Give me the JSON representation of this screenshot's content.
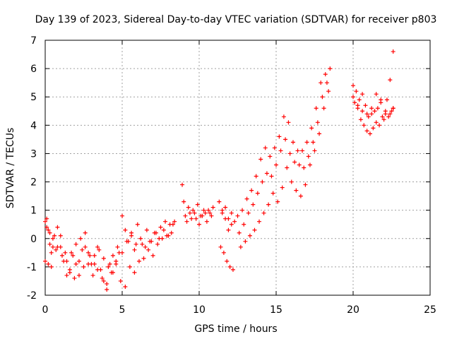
{
  "chart_data": {
    "type": "scatter",
    "title": "Day 139 of 2023, Sidereal Day-to-day VTEC variation (SDTVAR) for receiver p803",
    "xlabel": "GPS time / hours",
    "ylabel": "SDTVAR / TECUs",
    "xlim": [
      0,
      25
    ],
    "ylim": [
      -2,
      7
    ],
    "xticks": [
      "0",
      "5",
      "10",
      "15",
      "20",
      "25"
    ],
    "yticks": [
      "-2",
      "-1",
      "0",
      "1",
      "2",
      "3",
      "4",
      "5",
      "6",
      "7"
    ],
    "grid": true,
    "marker": "+",
    "color": "#ff0000",
    "series": [
      {
        "name": "SDTVAR",
        "x": [
          0.0,
          0.1,
          0.2,
          0.3,
          0.4,
          0.5,
          0.6,
          0.8,
          1.0,
          1.2,
          1.4,
          1.6,
          1.8,
          2.0,
          2.2,
          2.4,
          2.6,
          2.8,
          3.0,
          3.2,
          3.4,
          3.6,
          3.8,
          4.0,
          4.2,
          4.4,
          4.6,
          4.8,
          5.0,
          5.2,
          5.4,
          5.6,
          5.8,
          6.0,
          6.3,
          6.6,
          6.9,
          7.2,
          7.5,
          7.8,
          8.1,
          8.4,
          0.0,
          0.2,
          0.4,
          0.7,
          1.0,
          1.3,
          1.6,
          1.9,
          2.2,
          2.5,
          2.8,
          3.1,
          3.4,
          3.7,
          4.0,
          4.3,
          4.6,
          4.9,
          5.2,
          5.5,
          5.8,
          6.1,
          6.4,
          6.7,
          7.0,
          7.3,
          7.6,
          7.9,
          8.2,
          0.1,
          0.3,
          0.5,
          0.8,
          1.1,
          1.4,
          1.7,
          2.0,
          2.3,
          2.6,
          2.9,
          3.2,
          3.5,
          3.8,
          4.1,
          4.4,
          4.7,
          5.0,
          5.3,
          5.6,
          5.9,
          6.2,
          6.5,
          6.8,
          7.1,
          7.4,
          7.7,
          8.0,
          8.3,
          8.9,
          9.0,
          9.1,
          9.3,
          9.5,
          9.7,
          9.9,
          10.1,
          10.3,
          10.5,
          10.7,
          10.9,
          9.2,
          9.4,
          9.6,
          9.8,
          10.0,
          10.2,
          10.4,
          10.6,
          10.8,
          11.3,
          11.5,
          11.7,
          11.9,
          12.1,
          12.3,
          11.4,
          11.6,
          11.8,
          12.0,
          12.2,
          11.5,
          11.7,
          11.9,
          12.1,
          12.5,
          12.8,
          13.1,
          13.4,
          13.7,
          14.0,
          14.3,
          14.6,
          14.9,
          15.2,
          15.5,
          15.8,
          16.1,
          16.4,
          16.7,
          17.0,
          17.3,
          17.6,
          17.9,
          18.2,
          18.5,
          12.6,
          12.9,
          13.2,
          13.5,
          13.8,
          14.1,
          14.4,
          14.7,
          15.0,
          15.3,
          15.6,
          15.9,
          16.2,
          16.5,
          16.8,
          17.1,
          17.4,
          17.7,
          18.0,
          18.3,
          12.7,
          13.0,
          13.3,
          13.6,
          13.9,
          14.2,
          14.5,
          14.8,
          15.1,
          15.4,
          15.7,
          16.0,
          16.3,
          16.6,
          16.9,
          17.2,
          17.5,
          17.8,
          18.1,
          18.4,
          20.0,
          20.2,
          20.4,
          20.6,
          20.8,
          21.0,
          21.2,
          21.4,
          21.6,
          21.8,
          22.0,
          22.2,
          22.4,
          22.6,
          20.1,
          20.3,
          20.5,
          20.7,
          20.9,
          21.1,
          21.3,
          21.5,
          21.7,
          21.9,
          22.1,
          22.3,
          22.5,
          22.6,
          20.0,
          20.3,
          20.6,
          20.9,
          21.2,
          21.5,
          21.8,
          22.1,
          22.4,
          22.6
        ],
        "y": [
          0.6,
          0.7,
          0.3,
          -0.2,
          -0.5,
          -0.3,
          0.1,
          0.4,
          -0.3,
          -0.8,
          -1.3,
          -1.1,
          -0.6,
          -0.9,
          -0.8,
          -0.4,
          0.2,
          -0.5,
          -0.9,
          -0.6,
          -0.3,
          -1.1,
          -1.5,
          -1.6,
          -0.9,
          -1.2,
          -0.8,
          -0.5,
          0.8,
          0.3,
          -0.1,
          0.1,
          -0.4,
          0.5,
          -0.2,
          0.3,
          -0.1,
          0.2,
          0.4,
          0.6,
          0.5,
          0.6,
          -0.8,
          -0.9,
          -1.0,
          -0.4,
          0.1,
          -0.5,
          -1.2,
          -1.4,
          -1.3,
          -1.0,
          -0.9,
          -1.3,
          -1.1,
          -1.4,
          -1.8,
          -1.2,
          -0.9,
          -1.5,
          -1.7,
          -1.0,
          -1.2,
          -0.8,
          -0.7,
          -0.4,
          -0.6,
          -0.2,
          0.0,
          0.1,
          0.2,
          0.4,
          0.2,
          0.0,
          -0.3,
          -0.6,
          -0.8,
          -0.5,
          -0.2,
          0.0,
          -0.3,
          -0.6,
          -0.9,
          -0.4,
          -0.7,
          -1.0,
          -0.6,
          -0.3,
          -0.5,
          -0.1,
          0.2,
          -0.2,
          0.0,
          -0.3,
          -0.1,
          0.2,
          0.0,
          0.3,
          0.1,
          0.5,
          1.9,
          1.3,
          0.8,
          1.1,
          0.7,
          0.9,
          1.2,
          0.8,
          1.0,
          0.6,
          0.9,
          1.1,
          0.6,
          0.9,
          1.0,
          0.7,
          0.5,
          0.8,
          0.9,
          1.0,
          0.8,
          1.3,
          0.9,
          0.7,
          0.3,
          0.5,
          0.6,
          -0.3,
          -0.5,
          -0.8,
          -1.0,
          -1.1,
          1.0,
          1.1,
          0.7,
          0.9,
          0.8,
          1.0,
          1.4,
          1.7,
          2.2,
          2.8,
          3.2,
          2.9,
          3.2,
          3.6,
          4.3,
          4.1,
          3.4,
          3.1,
          3.1,
          3.4,
          3.9,
          4.6,
          5.5,
          5.8,
          6.0,
          0.2,
          0.5,
          0.9,
          1.2,
          1.6,
          2.0,
          2.3,
          2.2,
          2.6,
          3.1,
          3.5,
          3.0,
          2.7,
          2.6,
          2.5,
          2.9,
          3.4,
          4.1,
          5.0,
          5.5,
          -0.3,
          -0.1,
          0.1,
          0.3,
          0.6,
          0.9,
          1.2,
          1.6,
          1.3,
          1.8,
          2.5,
          2.0,
          1.7,
          1.5,
          1.9,
          2.6,
          3.1,
          3.7,
          4.6,
          5.2,
          5.4,
          5.2,
          4.9,
          5.1,
          4.7,
          4.3,
          4.4,
          4.5,
          4.6,
          4.8,
          4.2,
          4.9,
          5.6,
          6.6,
          4.8,
          4.6,
          4.2,
          4.0,
          3.8,
          3.7,
          3.9,
          4.1,
          4.0,
          4.3,
          4.4,
          4.3,
          4.5,
          4.6,
          5.0,
          4.7,
          4.5,
          4.4,
          4.6,
          5.1,
          4.9,
          4.5,
          4.4,
          4.6
        ]
      }
    ]
  }
}
